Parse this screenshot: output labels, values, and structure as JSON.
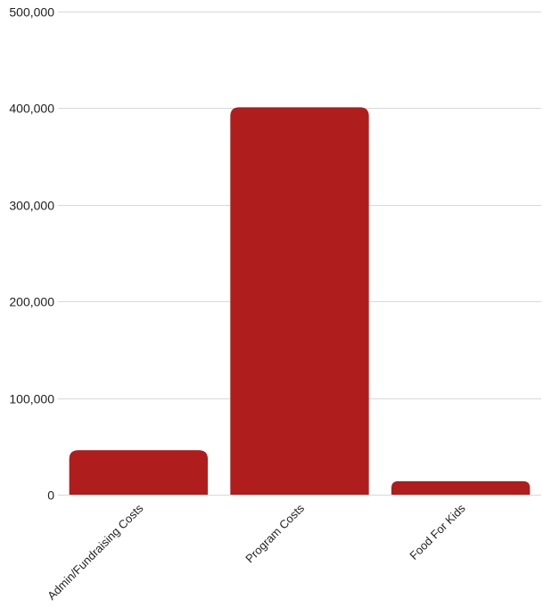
{
  "chart_data": {
    "type": "bar",
    "title": "",
    "xlabel": "",
    "ylabel": "",
    "categories": [
      "Admin/Fundraising Costs",
      "Program Costs",
      "Food For Kids"
    ],
    "values": [
      46000,
      401000,
      14000
    ],
    "ylim": [
      0,
      500000
    ],
    "yticks": [
      0,
      100000,
      200000,
      300000,
      400000,
      500000
    ],
    "ytick_labels": [
      "0",
      "100,000",
      "200,000",
      "300,000",
      "400,000",
      "500,000"
    ],
    "grid": true,
    "legend": "none",
    "bar_color": "#af1d1d"
  }
}
